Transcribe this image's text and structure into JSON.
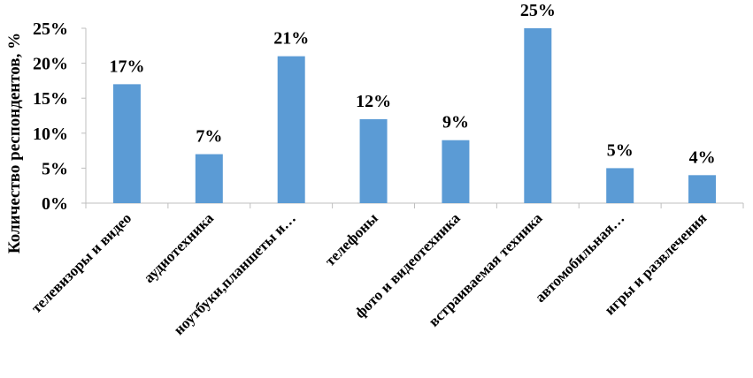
{
  "chart_data": {
    "type": "bar",
    "ylabel": "Количество респондентов, %",
    "xlabel": "",
    "categories": [
      "телевизоры и видео",
      "аудиотехника",
      "ноутбуки,планшеты и…",
      "телефоны",
      "фото и видеотехника",
      "встраиваемая техника",
      "автомобильная…",
      "игры и развлечения"
    ],
    "values": [
      17,
      7,
      21,
      12,
      9,
      25,
      5,
      4
    ],
    "data_labels": [
      "17%",
      "7%",
      "21%",
      "12%",
      "9%",
      "25%",
      "5%",
      "4%"
    ],
    "ylim": [
      0,
      25
    ],
    "yticks": [
      0,
      5,
      10,
      15,
      20,
      25
    ],
    "ytick_labels": [
      "0%",
      "5%",
      "10%",
      "15%",
      "20%",
      "25%"
    ],
    "grid": false,
    "legend": "none",
    "bar_color": "#5b9bd5",
    "axis_color": "#bfbfbf"
  }
}
